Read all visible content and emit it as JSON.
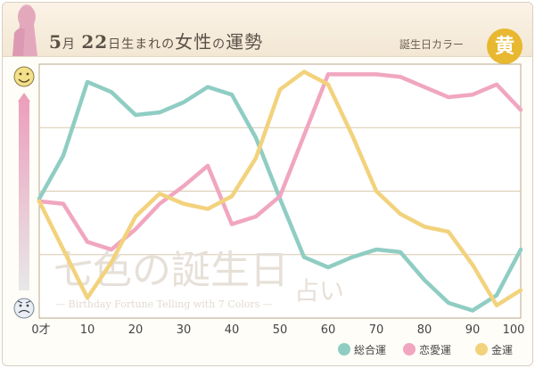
{
  "header": {
    "month": "5",
    "month_unit": "月",
    "day": "22",
    "day_suffix": "日生まれの",
    "gender": "女性",
    "particle": "の",
    "subject": "運勢",
    "birth_color_label": "誕生日カラー",
    "birth_color_char": "黄",
    "birth_color_hex": "#e8b830"
  },
  "watermark": {
    "line1": "七色の誕生日",
    "line2": "占い",
    "line3": "— Birthday Fortune Telling with 7 Colors —"
  },
  "icons": {
    "top": "happy-face-icon",
    "bottom": "sad-face-icon"
  },
  "chart_data": {
    "type": "line",
    "x_tick_labels": [
      "0才",
      "10",
      "20",
      "30",
      "40",
      "50",
      "60",
      "70",
      "80",
      "90",
      "100"
    ],
    "xlim": [
      0,
      100
    ],
    "ylim": [
      0,
      100
    ],
    "grid": true,
    "legend_position": "bottom-right",
    "series": [
      {
        "name": "総合運",
        "color": "#8fcdc3",
        "points": [
          [
            0,
            47
          ],
          [
            5,
            64
          ],
          [
            10,
            93
          ],
          [
            15,
            89
          ],
          [
            20,
            80
          ],
          [
            25,
            81
          ],
          [
            30,
            85
          ],
          [
            35,
            91
          ],
          [
            40,
            88
          ],
          [
            45,
            71
          ],
          [
            50,
            47
          ],
          [
            55,
            24
          ],
          [
            60,
            20
          ],
          [
            65,
            24
          ],
          [
            70,
            27
          ],
          [
            75,
            26
          ],
          [
            80,
            15
          ],
          [
            85,
            6
          ],
          [
            90,
            3
          ],
          [
            95,
            9
          ],
          [
            100,
            27
          ]
        ]
      },
      {
        "name": "恋愛運",
        "color": "#f1a6c0",
        "points": [
          [
            0,
            46
          ],
          [
            5,
            45
          ],
          [
            10,
            30
          ],
          [
            15,
            27
          ],
          [
            20,
            35
          ],
          [
            25,
            45
          ],
          [
            30,
            52
          ],
          [
            35,
            60
          ],
          [
            40,
            37
          ],
          [
            45,
            40
          ],
          [
            50,
            48
          ],
          [
            55,
            72
          ],
          [
            60,
            96
          ],
          [
            65,
            96
          ],
          [
            70,
            96
          ],
          [
            75,
            95
          ],
          [
            80,
            91
          ],
          [
            85,
            87
          ],
          [
            90,
            88
          ],
          [
            95,
            92
          ],
          [
            100,
            82
          ]
        ]
      },
      {
        "name": "金運",
        "color": "#f2d27c",
        "points": [
          [
            0,
            46
          ],
          [
            5,
            27
          ],
          [
            10,
            8
          ],
          [
            15,
            22
          ],
          [
            20,
            40
          ],
          [
            25,
            49
          ],
          [
            30,
            45
          ],
          [
            35,
            43
          ],
          [
            40,
            48
          ],
          [
            45,
            63
          ],
          [
            50,
            90
          ],
          [
            55,
            97
          ],
          [
            60,
            92
          ],
          [
            65,
            72
          ],
          [
            70,
            50
          ],
          [
            75,
            41
          ],
          [
            80,
            36
          ],
          [
            85,
            34
          ],
          [
            90,
            21
          ],
          [
            95,
            5
          ],
          [
            100,
            11
          ]
        ]
      }
    ]
  }
}
